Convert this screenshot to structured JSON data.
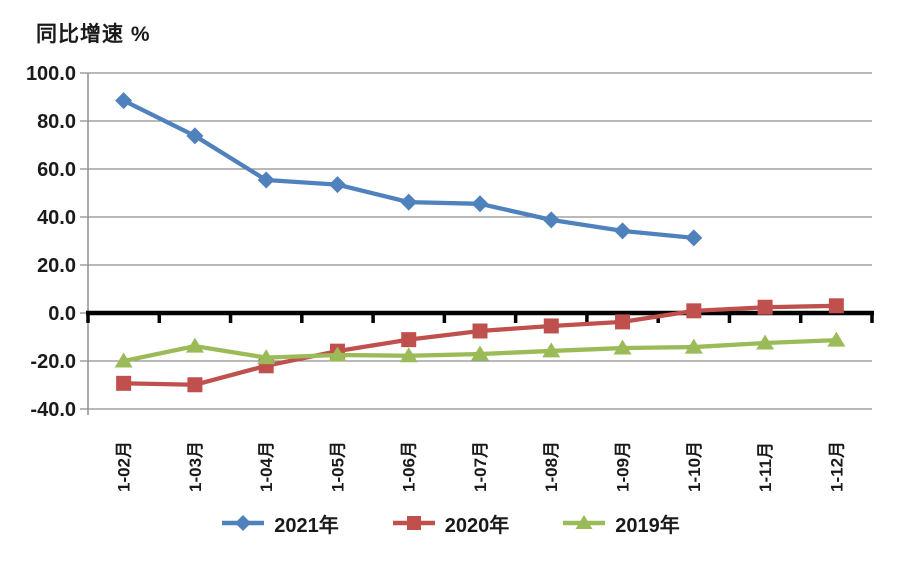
{
  "chart_data": {
    "type": "line",
    "title": "同比增速 %",
    "categories": [
      "1-02月",
      "1-03月",
      "1-04月",
      "1-05月",
      "1-06月",
      "1-07月",
      "1-08月",
      "1-09月",
      "1-10月",
      "1-11月",
      "1-12月"
    ],
    "series": [
      {
        "name": "2021年",
        "marker": "diamond",
        "color": "#4F81BD",
        "values": [
          88.5,
          73.8,
          55.4,
          53.5,
          46.2,
          45.5,
          38.8,
          34.2,
          31.3,
          null,
          null
        ]
      },
      {
        "name": "2020年",
        "marker": "square",
        "color": "#C0504D",
        "values": [
          -29.3,
          -29.9,
          -22.0,
          -15.9,
          -11.1,
          -7.5,
          -5.4,
          -3.7,
          0.9,
          2.4,
          3.0
        ]
      },
      {
        "name": "2019年",
        "marker": "triangle",
        "color": "#9BBB59",
        "values": [
          -20.0,
          -13.8,
          -18.6,
          -17.5,
          -17.8,
          -17.1,
          -15.8,
          -14.6,
          -14.2,
          -12.5,
          -11.3
        ]
      }
    ],
    "ylim": [
      -40,
      100
    ],
    "ytick_step": 20,
    "ytick_labels": [
      "100.0",
      "80.0",
      "60.0",
      "40.0",
      "20.0",
      "0.0",
      "-20.0",
      "-40.0"
    ],
    "grid": true,
    "legend_position": "bottom",
    "colors": {
      "gridline": "#8f8f8f",
      "axis_line": "#000000",
      "text": "#1a1a1a",
      "background": "#ffffff"
    }
  }
}
